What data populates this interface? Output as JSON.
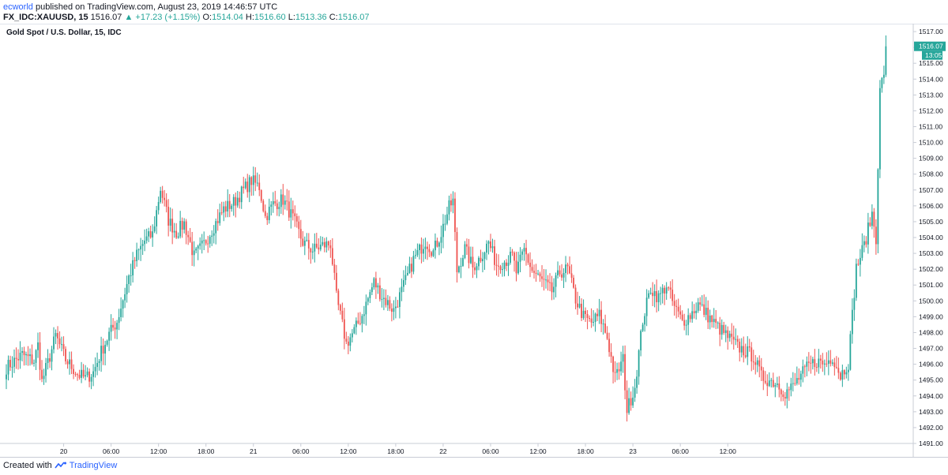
{
  "header": {
    "author": "ecworld",
    "published_text": "published on TradingView.com, August 23, 2019 14:46:57 UTC",
    "symbol": "FX_IDC:XAUUSD, 15",
    "last": "1516.07",
    "change": "+17.23 (+1.15%)",
    "o_label": "O:",
    "o_value": "1514.04",
    "h_label": "H:",
    "h_value": "1516.60",
    "l_label": "L:",
    "l_value": "1513.36",
    "c_label": "C:",
    "c_value": "1516.07"
  },
  "footer": {
    "created_text": "Created with",
    "brand": "TradingView",
    "icon": "tradingview-logo-icon"
  },
  "colors": {
    "up": "#26a69a",
    "down": "#ef5350",
    "price_tag": "#26a69a",
    "axis_text": "#131722",
    "border": "#c8ccd6"
  },
  "chart_data": {
    "type": "candlestick",
    "title": "Gold Spot / U.S. Dollar, 15, IDC",
    "interval_minutes": 15,
    "start": "2019-08-19 16:45",
    "ylim": [
      1491,
      1517.5
    ],
    "y_ticks": [
      "1517.00",
      "1516.00",
      "1515.00",
      "1514.00",
      "1513.00",
      "1512.00",
      "1511.00",
      "1510.00",
      "1509.00",
      "1508.00",
      "1507.00",
      "1506.00",
      "1505.00",
      "1504.00",
      "1503.00",
      "1502.00",
      "1501.00",
      "1500.00",
      "1499.00",
      "1498.00",
      "1497.00",
      "1496.00",
      "1495.00",
      "1494.00",
      "1493.00",
      "1492.00",
      "1491.00"
    ],
    "x_ticks": [
      {
        "label": "20",
        "time": "2019-08-20 00:00"
      },
      {
        "label": "06:00",
        "time": "2019-08-20 06:00"
      },
      {
        "label": "12:00",
        "time": "2019-08-20 12:00"
      },
      {
        "label": "18:00",
        "time": "2019-08-20 18:00"
      },
      {
        "label": "21",
        "time": "2019-08-21 00:00"
      },
      {
        "label": "06:00",
        "time": "2019-08-21 06:00"
      },
      {
        "label": "12:00",
        "time": "2019-08-21 12:00"
      },
      {
        "label": "18:00",
        "time": "2019-08-21 18:00"
      },
      {
        "label": "22",
        "time": "2019-08-22 00:00"
      },
      {
        "label": "06:00",
        "time": "2019-08-22 06:00"
      },
      {
        "label": "12:00",
        "time": "2019-08-22 12:00"
      },
      {
        "label": "18:00",
        "time": "2019-08-22 18:00"
      },
      {
        "label": "23",
        "time": "2019-08-23 00:00"
      },
      {
        "label": "06:00",
        "time": "2019-08-23 06:00"
      },
      {
        "label": "12:00",
        "time": "2019-08-23 12:00"
      }
    ],
    "last_price": {
      "value": 1516.07,
      "label": "1516.07",
      "countdown": "13:05"
    },
    "grid": false,
    "close_path": [
      [
        0,
        1495.8
      ],
      [
        8,
        1496.6
      ],
      [
        14,
        1496.2
      ],
      [
        16,
        1497.2
      ],
      [
        18,
        1494.9
      ],
      [
        22,
        1496.5
      ],
      [
        25,
        1497.8
      ],
      [
        30,
        1496.3
      ],
      [
        36,
        1495.4
      ],
      [
        40,
        1495.1
      ],
      [
        44,
        1495.5
      ],
      [
        48,
        1496.8
      ],
      [
        52,
        1497.9
      ],
      [
        56,
        1498.7
      ],
      [
        62,
        1501.5
      ],
      [
        66,
        1502.9
      ],
      [
        70,
        1503.8
      ],
      [
        74,
        1504.2
      ],
      [
        78,
        1507.1
      ],
      [
        82,
        1505.1
      ],
      [
        86,
        1504.3
      ],
      [
        90,
        1504.9
      ],
      [
        95,
        1502.8
      ],
      [
        100,
        1503.6
      ],
      [
        104,
        1504.5
      ],
      [
        110,
        1505.8
      ],
      [
        115,
        1506.2
      ],
      [
        120,
        1507.0
      ],
      [
        124,
        1507.6
      ],
      [
        128,
        1507.2
      ],
      [
        131,
        1505.3
      ],
      [
        135,
        1506.1
      ],
      [
        140,
        1506.4
      ],
      [
        145,
        1505.2
      ],
      [
        150,
        1503.7
      ],
      [
        155,
        1503.2
      ],
      [
        160,
        1503.5
      ],
      [
        164,
        1503.6
      ],
      [
        167,
        1500.2
      ],
      [
        172,
        1497.3
      ],
      [
        176,
        1498.1
      ],
      [
        180,
        1499.1
      ],
      [
        186,
        1501.2
      ],
      [
        190,
        1500.3
      ],
      [
        196,
        1499.4
      ],
      [
        200,
        1500.6
      ],
      [
        206,
        1502.6
      ],
      [
        212,
        1503.8
      ],
      [
        216,
        1503.1
      ],
      [
        220,
        1504.3
      ],
      [
        224,
        1505.9
      ],
      [
        226,
        1506.3
      ],
      [
        228,
        1501.9
      ],
      [
        232,
        1503.3
      ],
      [
        236,
        1502.1
      ],
      [
        240,
        1502.8
      ],
      [
        244,
        1503.7
      ],
      [
        248,
        1502.3
      ],
      [
        252,
        1502.5
      ],
      [
        256,
        1502.8
      ],
      [
        258,
        1501.8
      ],
      [
        262,
        1503.2
      ],
      [
        266,
        1501.9
      ],
      [
        270,
        1501.4
      ],
      [
        276,
        1500.6
      ],
      [
        280,
        1501.8
      ],
      [
        284,
        1502.0
      ],
      [
        288,
        1500.1
      ],
      [
        292,
        1499.0
      ],
      [
        296,
        1498.6
      ],
      [
        300,
        1499.1
      ],
      [
        304,
        1497.7
      ],
      [
        308,
        1495.1
      ],
      [
        312,
        1496.3
      ],
      [
        314,
        1493.1
      ],
      [
        318,
        1494.6
      ],
      [
        322,
        1498.8
      ],
      [
        326,
        1500.8
      ],
      [
        330,
        1500.2
      ],
      [
        334,
        1501.0
      ],
      [
        338,
        1499.6
      ],
      [
        342,
        1498.7
      ],
      [
        346,
        1499.1
      ],
      [
        350,
        1499.8
      ],
      [
        354,
        1499.2
      ],
      [
        358,
        1498.6
      ],
      [
        362,
        1498.1
      ],
      [
        366,
        1497.6
      ],
      [
        370,
        1497.1
      ],
      [
        374,
        1496.8
      ],
      [
        378,
        1496.5
      ],
      [
        382,
        1495.2
      ],
      [
        386,
        1495.0
      ],
      [
        390,
        1494.8
      ],
      [
        394,
        1494.2
      ],
      [
        398,
        1494.6
      ],
      [
        402,
        1495.3
      ],
      [
        406,
        1495.9
      ],
      [
        410,
        1496.2
      ],
      [
        414,
        1496.0
      ],
      [
        418,
        1496.5
      ],
      [
        422,
        1495.3
      ],
      [
        426,
        1496.1
      ],
      [
        430,
        1502.1
      ],
      [
        434,
        1503.5
      ],
      [
        438,
        1505.5
      ],
      [
        440,
        1504.0
      ],
      [
        442,
        1513.2
      ],
      [
        444,
        1514.5
      ],
      [
        445,
        1516.07
      ]
    ]
  }
}
